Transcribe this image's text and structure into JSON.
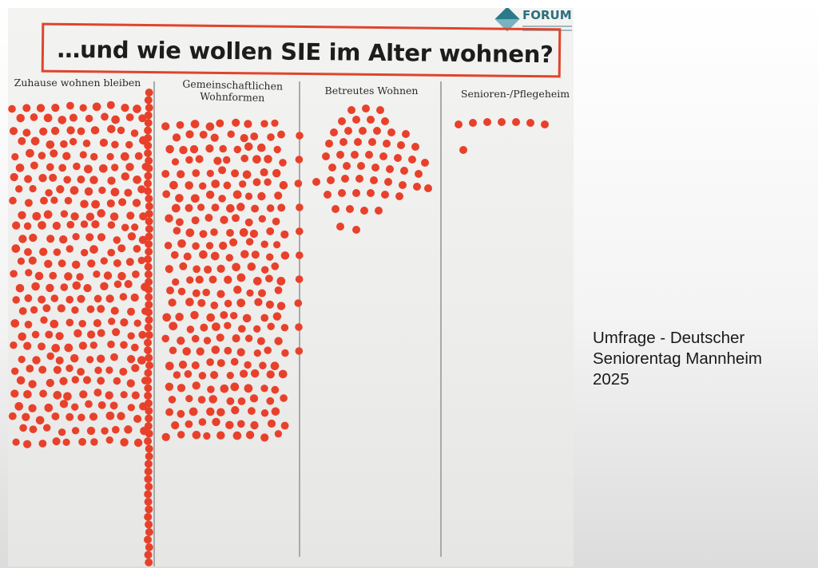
{
  "poster": {
    "title": "…und wie wollen SIE im Alter wohnen?",
    "logo": {
      "wordmark": "FORUM",
      "subtitle": "Gemeinschaftliches Wohnen Bundesvereinigung",
      "icon": "forum-diamond-logo-icon"
    },
    "columns": [
      {
        "id": "zuhause",
        "heading": [
          "Zuhause wohnen bleiben"
        ]
      },
      {
        "id": "gemeinschaftlich",
        "heading": [
          "Gemeinschaftlichen",
          "Wohnformen"
        ]
      },
      {
        "id": "betreut",
        "heading": [
          "Betreutes Wohnen"
        ]
      },
      {
        "id": "pflegeheim",
        "heading": [
          "Senioren-/Pflegeheim"
        ]
      }
    ],
    "dot_color": "#e8412b",
    "header_frame_color": "#e0442c"
  },
  "caption": {
    "lines": [
      "Umfrage - Deutscher",
      "Seniorentag Mannheim",
      "2025"
    ]
  }
}
